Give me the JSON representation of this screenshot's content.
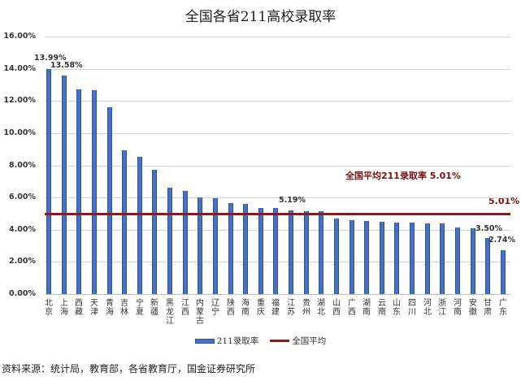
{
  "chart_data": {
    "type": "bar",
    "title": "全国各省211高校录取率",
    "xlabel": "",
    "ylabel": "",
    "ylim": [
      0,
      16
    ],
    "yticks": [
      "0.00%",
      "2.00%",
      "4.00%",
      "6.00%",
      "8.00%",
      "10.00%",
      "12.00%",
      "14.00%",
      "16.00%"
    ],
    "grid": true,
    "legend_position": "bottom",
    "categories": [
      "北京",
      "上海",
      "西藏",
      "天津",
      "青海",
      "吉林",
      "宁夏",
      "新疆",
      "黑龙江",
      "江西",
      "内蒙古",
      "辽宁",
      "陕西",
      "海南",
      "重庆",
      "福建",
      "江苏",
      "贵州",
      "湖北",
      "山西",
      "广西",
      "湖南",
      "云南",
      "山东",
      "四川",
      "河北",
      "浙江",
      "河南",
      "安徽",
      "甘肃",
      "广东"
    ],
    "series": [
      {
        "name": "211录取率",
        "type": "bar",
        "color": "#4472c4",
        "values": [
          13.99,
          13.58,
          12.73,
          12.68,
          11.62,
          8.94,
          8.54,
          7.73,
          6.62,
          6.42,
          6.03,
          5.94,
          5.67,
          5.62,
          5.37,
          5.35,
          5.19,
          5.17,
          5.17,
          4.68,
          4.6,
          4.55,
          4.49,
          4.44,
          4.44,
          4.41,
          4.39,
          4.14,
          4.09,
          3.5,
          2.74
        ]
      },
      {
        "name": "全国平均",
        "type": "line",
        "color": "#8b1a1a",
        "value": 5.01
      }
    ],
    "data_labels": [
      {
        "category": "北京",
        "text": "13.99%"
      },
      {
        "category": "上海",
        "text": "13.58%"
      },
      {
        "category": "江苏",
        "text": "5.19%"
      },
      {
        "category": "甘肃",
        "text": "3.50%"
      },
      {
        "category": "广东",
        "text": "2.74%"
      },
      {
        "category": "全国平均",
        "text": "5.01%"
      }
    ],
    "annotations": [
      "全国平均211录取率 5.01%"
    ]
  },
  "legend": {
    "bar_label": "211录取率",
    "line_label": "全国平均"
  },
  "avg_annotation": "全国平均211录取率 5.01%",
  "avg_value_label": "5.01%",
  "source": "资料来源：统计局，教育部，各省教育厅，国金证券研究所"
}
